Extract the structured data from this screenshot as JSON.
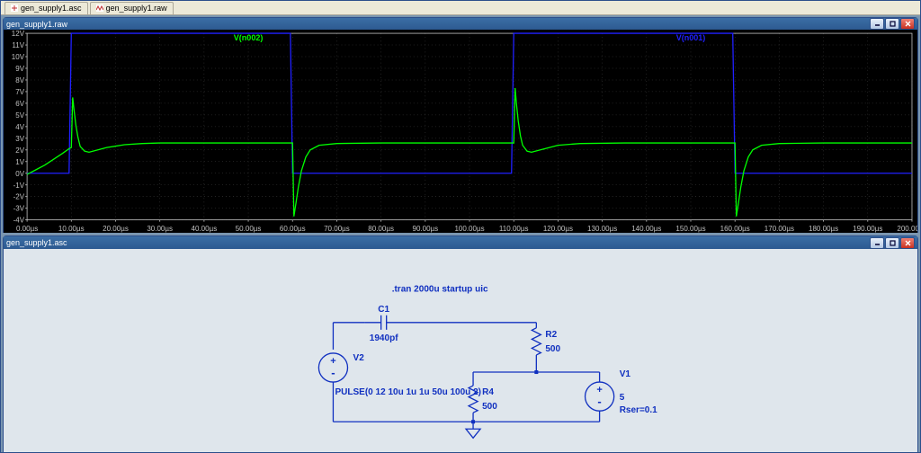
{
  "tabs": [
    {
      "icon": "probe",
      "label": "gen_supply1.asc"
    },
    {
      "icon": "wave",
      "label": "gen_supply1.raw"
    }
  ],
  "plot_window": {
    "title": "gen_supply1.raw",
    "bg": "#000000",
    "grid_color": "#404040",
    "axis_color": "#c0c0c0",
    "traces": [
      {
        "name": "V(n002)",
        "color": "#00ff00"
      },
      {
        "name": "V(n001)",
        "color": "#2020ff"
      }
    ],
    "y": {
      "min": -4,
      "max": 12,
      "step": 1,
      "unit": "V",
      "ticks": [
        "12V",
        "11V",
        "10V",
        "9V",
        "8V",
        "7V",
        "6V",
        "5V",
        "4V",
        "3V",
        "2V",
        "1V",
        "0V",
        "-1V",
        "-2V",
        "-3V",
        "-4V"
      ]
    },
    "x": {
      "min": 0,
      "max": 200,
      "step": 10,
      "unit": "µs",
      "ticks": [
        "0.00µs",
        "10.00µs",
        "20.00µs",
        "30.00µs",
        "40.00µs",
        "50.00µs",
        "60.00µs",
        "70.00µs",
        "80.00µs",
        "90.00µs",
        "100.00µs",
        "110.00µs",
        "120.00µs",
        "130.00µs",
        "140.00µs",
        "150.00µs",
        "160.00µs",
        "170.00µs",
        "180.00µs",
        "190.00µs",
        "200.00µs"
      ]
    },
    "green_points": [
      [
        0,
        -0.1
      ],
      [
        2,
        0.3
      ],
      [
        4,
        0.7
      ],
      [
        6,
        1.2
      ],
      [
        8,
        1.7
      ],
      [
        9.5,
        2.1
      ],
      [
        10,
        2.2
      ],
      [
        10.3,
        6.5
      ],
      [
        10.6,
        5.5
      ],
      [
        11,
        4.2
      ],
      [
        11.5,
        3.1
      ],
      [
        12,
        2.3
      ],
      [
        13,
        1.9
      ],
      [
        14,
        1.8
      ],
      [
        16,
        2.0
      ],
      [
        18,
        2.2
      ],
      [
        22,
        2.45
      ],
      [
        26,
        2.55
      ],
      [
        30,
        2.6
      ],
      [
        40,
        2.6
      ],
      [
        50,
        2.6
      ],
      [
        58,
        2.6
      ],
      [
        60,
        2.6
      ],
      [
        60.3,
        -3.7
      ],
      [
        60.8,
        -2.5
      ],
      [
        61.3,
        -1.2
      ],
      [
        62,
        0.2
      ],
      [
        63,
        1.4
      ],
      [
        64,
        2.0
      ],
      [
        66,
        2.4
      ],
      [
        70,
        2.55
      ],
      [
        80,
        2.6
      ],
      [
        90,
        2.6
      ],
      [
        100,
        2.6
      ],
      [
        108,
        2.6
      ],
      [
        110,
        2.6
      ],
      [
        110.3,
        7.3
      ],
      [
        110.6,
        6.0
      ],
      [
        111,
        4.5
      ],
      [
        111.5,
        3.2
      ],
      [
        112,
        2.4
      ],
      [
        113,
        1.9
      ],
      [
        114,
        1.8
      ],
      [
        116,
        2.0
      ],
      [
        120,
        2.4
      ],
      [
        125,
        2.55
      ],
      [
        135,
        2.6
      ],
      [
        150,
        2.6
      ],
      [
        158,
        2.6
      ],
      [
        160,
        2.6
      ],
      [
        160.3,
        -3.7
      ],
      [
        160.8,
        -2.5
      ],
      [
        161.3,
        -1.2
      ],
      [
        162,
        0.2
      ],
      [
        163,
        1.4
      ],
      [
        164,
        2.0
      ],
      [
        166,
        2.4
      ],
      [
        170,
        2.55
      ],
      [
        180,
        2.6
      ],
      [
        190,
        2.6
      ],
      [
        200,
        2.6
      ]
    ],
    "blue_points": [
      [
        0,
        0
      ],
      [
        9.5,
        0
      ],
      [
        10,
        12
      ],
      [
        59.5,
        12
      ],
      [
        60,
        0
      ],
      [
        60.5,
        0
      ],
      [
        109.5,
        0
      ],
      [
        110,
        12
      ],
      [
        159.5,
        12
      ],
      [
        160,
        0
      ],
      [
        200,
        0
      ]
    ]
  },
  "schematic_window": {
    "title": "gen_supply1.asc",
    "bg": "#dfe6ec",
    "wire_color": "#1030c0",
    "text_color": "#1030c0",
    "font_size": 10,
    "directive": ".tran 2000u startup uic",
    "components": {
      "C1": {
        "label": "C1",
        "value": "1940pf"
      },
      "V2": {
        "label": "V2",
        "value": "PULSE(0 12 10u 1u 1u 50u 100u 2)"
      },
      "R2": {
        "label": "R2",
        "value": "500"
      },
      "R4": {
        "label": "R4",
        "value": "500"
      },
      "V1": {
        "label": "V1",
        "value": "5",
        "ser": "Rser=0.1"
      }
    }
  },
  "window_buttons": {
    "min": "minimize",
    "max": "maximize",
    "close": "close"
  }
}
